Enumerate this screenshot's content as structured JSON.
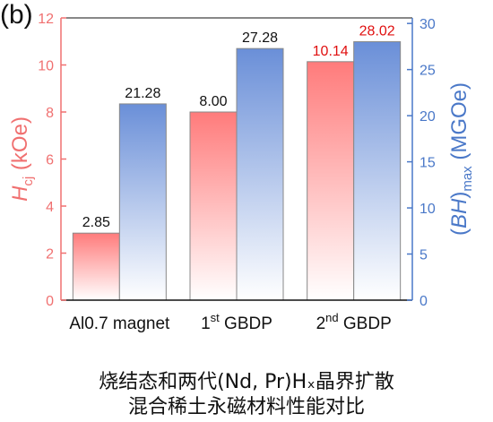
{
  "panel_label": "(b)",
  "caption": {
    "line1": "烧结态和两代(Nd, Pr)Hₓ晶界扩散",
    "line2": "混合稀土永磁材料性能对比"
  },
  "chart_data": {
    "type": "bar",
    "categories": [
      {
        "text": "Al0.7 magnet",
        "sup": ""
      },
      {
        "text": "1",
        "sup": "st",
        "rest": " GBDP"
      },
      {
        "text": "2",
        "sup": "nd",
        "rest": " GBDP"
      }
    ],
    "series": [
      {
        "name": "Hcj",
        "axis": "left",
        "values": [
          2.85,
          8.0,
          10.14
        ],
        "labels": [
          "2.85",
          "8.00",
          "10.14"
        ],
        "color": "#ff7b7b",
        "fade": "#ffffff"
      },
      {
        "name": "(BH)max",
        "axis": "right",
        "values": [
          21.28,
          27.28,
          28.02
        ],
        "labels": [
          "21.28",
          "27.28",
          "28.02"
        ],
        "color": "#6a8fd8",
        "fade": "#ffffff"
      }
    ],
    "left_axis": {
      "title_main": "H",
      "title_sub": "cj",
      "title_unit": " (kOe)",
      "min": 0,
      "max": 12,
      "ticks": [
        0,
        2,
        4,
        6,
        8,
        10,
        12
      ],
      "color": "#f07070"
    },
    "right_axis": {
      "title_paren": "(",
      "title_main": "BH",
      "title_close": ")",
      "title_sub": "max",
      "title_unit": " (MGOe)",
      "min": 0,
      "max": 30.6,
      "ticks": [
        0,
        5,
        10,
        15,
        20,
        25,
        30
      ],
      "color": "#4a78c8"
    },
    "label_colors": {
      "default": "#111111",
      "highlight": "#e01010"
    },
    "highlight_category_index": 2,
    "grid": false
  }
}
